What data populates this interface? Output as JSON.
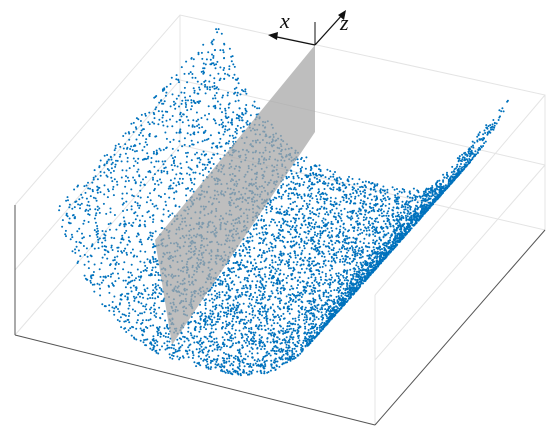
{
  "axes": {
    "x": "x",
    "z": "z"
  }
}
